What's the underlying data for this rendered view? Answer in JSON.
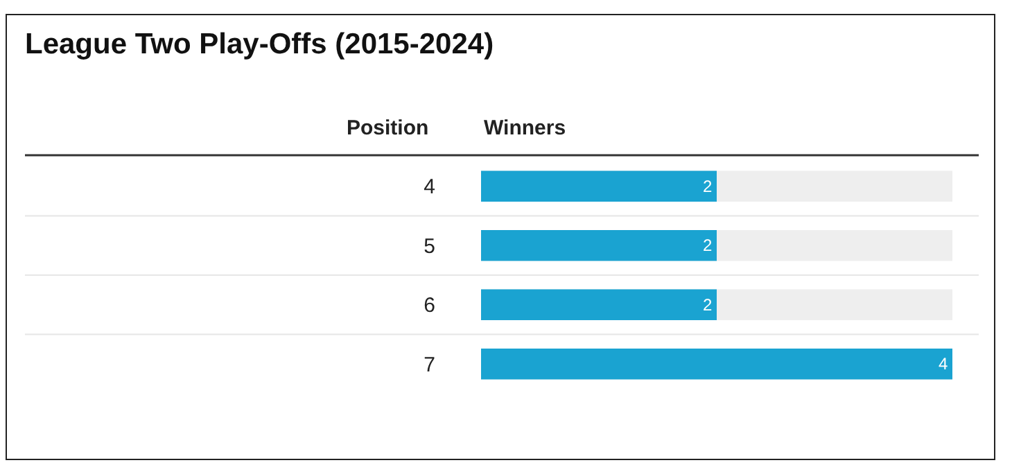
{
  "chart_data": {
    "type": "bar",
    "orientation": "horizontal",
    "title": "League Two Play-Offs (2015-2024)",
    "ylabel": "Position",
    "xlabel": "Winners",
    "categories": [
      "4",
      "5",
      "6",
      "7"
    ],
    "values": [
      2,
      2,
      2,
      4
    ],
    "color": "#1aa3d1",
    "xlim": [
      0,
      4
    ],
    "data_labels": true
  }
}
